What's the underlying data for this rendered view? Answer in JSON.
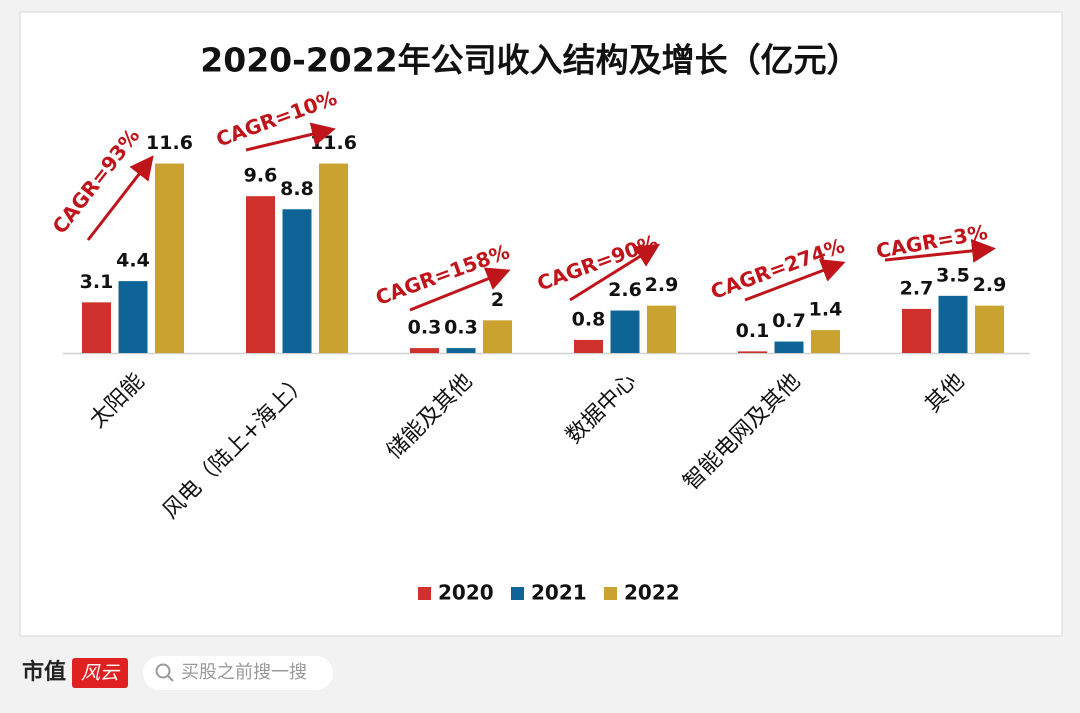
{
  "chart_data": {
    "type": "bar",
    "title": "2020-2022年公司收入结构及增长（亿元）",
    "categories": [
      "太阳能",
      "风电（陆上+海上）",
      "储能及其他",
      "数据中心",
      "智能电网及其他",
      "其他"
    ],
    "series": [
      {
        "name": "2020",
        "color": "#d0312d",
        "values": [
          3.1,
          9.6,
          0.3,
          0.8,
          0.1,
          2.7
        ]
      },
      {
        "name": "2021",
        "color": "#0e6496",
        "values": [
          4.4,
          8.8,
          0.3,
          2.6,
          0.7,
          3.5
        ]
      },
      {
        "name": "2022",
        "color": "#c9a22f",
        "values": [
          11.6,
          11.6,
          2,
          2.9,
          1.4,
          2.9
        ]
      }
    ],
    "annotations": [
      "CAGR=93%",
      "CAGR=10%",
      "CAGR=158%",
      "CAGR=90%",
      "CAGR=274%",
      "CAGR=3%"
    ],
    "ylim": [
      0,
      12
    ],
    "legend": "bottom"
  },
  "footer": {
    "brand": "市值",
    "logo": "风云",
    "search_placeholder": "买股之前搜一搜"
  }
}
